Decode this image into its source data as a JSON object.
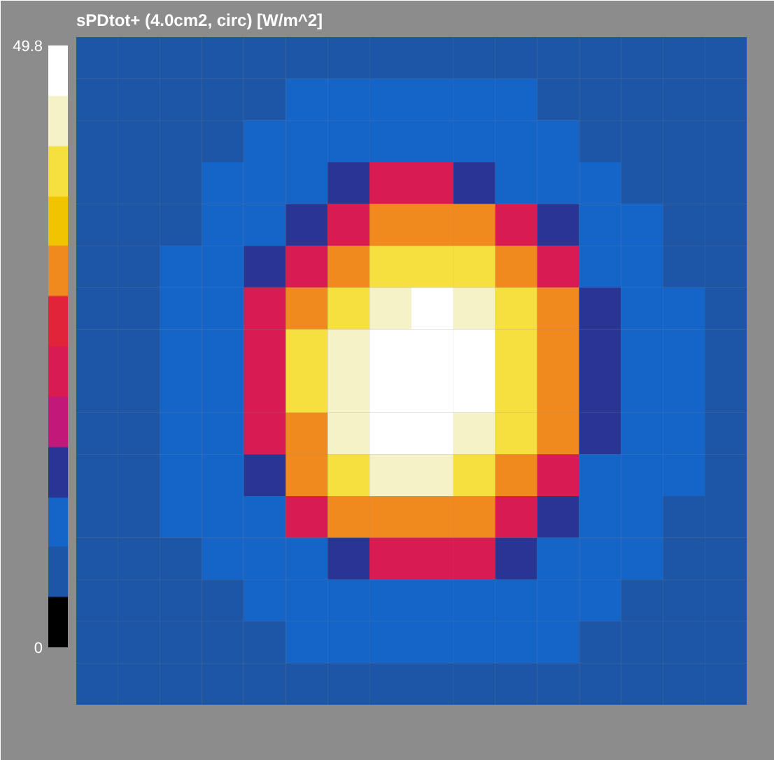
{
  "chart_data": {
    "type": "heatmap",
    "title": "sPDtot+ (4.0cm2, circ) [W/m^2]",
    "categories": [
      null,
      null,
      null,
      null,
      null,
      null,
      null,
      null,
      null,
      null,
      null,
      null,
      null,
      null,
      null,
      null
    ],
    "y_categories": [
      null,
      null,
      null,
      null,
      null,
      null,
      null,
      null,
      null,
      null,
      null,
      null,
      null,
      null,
      null,
      null
    ],
    "cells": [
      [
        5,
        5,
        6,
        6,
        6,
        7,
        7,
        7,
        7,
        7,
        7,
        7,
        6,
        6,
        5,
        5
      ],
      [
        5,
        6,
        6,
        7,
        7,
        9,
        9,
        10,
        10,
        9,
        9,
        7,
        7,
        6,
        6,
        5
      ],
      [
        5,
        6,
        7,
        7,
        9,
        10,
        10,
        12,
        12,
        10,
        10,
        10,
        7,
        7,
        6,
        6
      ],
      [
        6,
        6,
        7,
        9,
        10,
        12,
        16,
        22,
        22,
        16,
        12,
        10,
        10,
        7,
        7,
        6
      ],
      [
        6,
        7,
        7,
        10,
        12,
        16,
        22,
        30,
        30,
        30,
        22,
        16,
        10,
        9,
        7,
        6
      ],
      [
        6,
        7,
        9,
        10,
        16,
        22,
        30,
        38,
        38,
        38,
        30,
        22,
        12,
        10,
        7,
        7
      ],
      [
        6,
        7,
        10,
        12,
        22,
        30,
        38,
        44,
        47,
        44,
        38,
        30,
        16,
        10,
        9,
        7
      ],
      [
        7,
        7,
        10,
        12,
        22,
        38,
        44,
        47,
        49,
        47,
        38,
        30,
        16,
        10,
        9,
        7
      ],
      [
        7,
        7,
        10,
        12,
        22,
        38,
        44,
        49,
        49.8,
        47,
        38,
        30,
        16,
        10,
        9,
        7
      ],
      [
        6,
        7,
        10,
        12,
        22,
        30,
        44,
        47,
        47,
        44,
        38,
        30,
        16,
        10,
        9,
        7
      ],
      [
        6,
        7,
        9,
        10,
        16,
        30,
        38,
        44,
        44,
        38,
        30,
        22,
        12,
        10,
        9,
        7
      ],
      [
        6,
        7,
        9,
        10,
        12,
        22,
        30,
        30,
        30,
        30,
        22,
        16,
        10,
        10,
        7,
        6
      ],
      [
        6,
        7,
        7,
        9,
        10,
        12,
        16,
        22,
        22,
        22,
        16,
        12,
        10,
        9,
        7,
        6
      ],
      [
        6,
        6,
        7,
        7,
        10,
        10,
        12,
        12,
        12,
        12,
        10,
        10,
        9,
        7,
        6,
        6
      ],
      [
        5,
        6,
        6,
        7,
        7,
        9,
        10,
        10,
        10,
        10,
        9,
        9,
        7,
        7,
        6,
        5
      ],
      [
        5,
        5,
        6,
        6,
        7,
        7,
        7,
        7,
        7,
        7,
        7,
        7,
        6,
        6,
        5,
        5
      ]
    ],
    "clim": [
      0,
      49.8
    ],
    "cticks": [
      0,
      49.8
    ],
    "tick_labels": false
  }
}
